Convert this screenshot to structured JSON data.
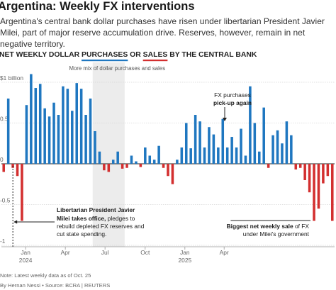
{
  "headline": "Argentina: Weekly FX interventions",
  "dek": "Argentina's central bank dollar purchases have risen under libertarian President Javier Milei, part of major reserve accumulation drive. Reserves, however, remain in net negative territory.",
  "chart_title": {
    "prefix": "NET WEEKLY DOLLAR ",
    "purchases": "PURCHASES",
    "or": " OR ",
    "sales": "SALES",
    "suffix": " BY THE CENTRAL BANK"
  },
  "colors": {
    "purchase": "#1f77c0",
    "sale": "#d32f2f",
    "shade": "#ececec",
    "grid": "#d6d6d6"
  },
  "annotations": {
    "shade_label": "More mix of dollar purchases and sales",
    "fx_pickup_line1": "FX purchases",
    "fx_pickup_line2": "pick-up again",
    "milei_bold1": "Libertarian President Javier",
    "milei_bold2": "Milei takes office,",
    "milei_rest2": " pledges to",
    "milei_line3": "rebuild depleted FX reserves and",
    "milei_line4": "cut state spending.",
    "sale_bold": "Biggest net weekly sale",
    "sale_rest": " of FX",
    "sale_line2": "under Milei's government"
  },
  "footer": {
    "note": "Note: Latest weekly data as of Oct. 25",
    "credit": "By Hernan Nessi • Source: BCRA | REUTERS"
  },
  "chart_data": {
    "type": "bar",
    "title": "NET WEEKLY DOLLAR PURCHASES OR SALES BY THE CENTRAL BANK",
    "ylabel": "",
    "ylim": [
      -1,
      1.15
    ],
    "yticks": [
      {
        "value": 1,
        "label": "$1 billion"
      },
      {
        "value": 0.5,
        "label": "0.5"
      },
      {
        "value": 0,
        "label": "0"
      },
      {
        "value": -0.5,
        "label": "-0.5"
      },
      {
        "value": -1,
        "label": "-1"
      }
    ],
    "xticks": [
      {
        "week": 4.8,
        "label": "Jan",
        "year": "2024"
      },
      {
        "week": 13.5,
        "label": "Apr",
        "year": ""
      },
      {
        "week": 22.2,
        "label": "Jul",
        "year": ""
      },
      {
        "week": 31,
        "label": "Oct",
        "year": ""
      },
      {
        "week": 39.7,
        "label": "Jan",
        "year": "2025"
      },
      {
        "week": 48.3,
        "label": "Apr",
        "year": ""
      }
    ],
    "shaded_weeks": [
      19.5,
      26.5
    ],
    "milei_week": 1.7,
    "pickup_week": 31.6,
    "biggest_sale_week": 50.2,
    "series": [
      {
        "values": [
          -0.1,
          0.8,
          -0.05,
          -0.15,
          -0.7,
          0.72,
          1.1,
          0.93,
          0.98,
          0.68,
          0.58,
          0.75,
          0.6,
          0.95,
          0.92,
          0.65,
          0.99,
          0.92,
          0.6,
          0.8,
          0.4,
          0.15,
          -0.08,
          -0.1,
          0.05,
          0.15,
          -0.06,
          -0.05,
          0.1,
          0.03,
          -0.04,
          0.2,
          0.1,
          0.05,
          0.22,
          -0.05,
          -0.15,
          -0.25,
          0.05,
          0.2,
          0.5,
          0.19,
          0.6,
          0.52,
          0.2,
          0.45,
          0.36,
          0.2,
          0.55,
          0.2,
          0.33,
          0.2,
          0.43,
          0.1,
          0.95,
          0.5,
          0.15,
          0.69,
          -0.05,
          0.35,
          0.41,
          0.25,
          0.52,
          0.35,
          -0.07,
          -0.05,
          -0.2,
          -0.35,
          -0.7,
          -0.55,
          -0.24,
          -0.15,
          -0.7
        ]
      }
    ]
  }
}
